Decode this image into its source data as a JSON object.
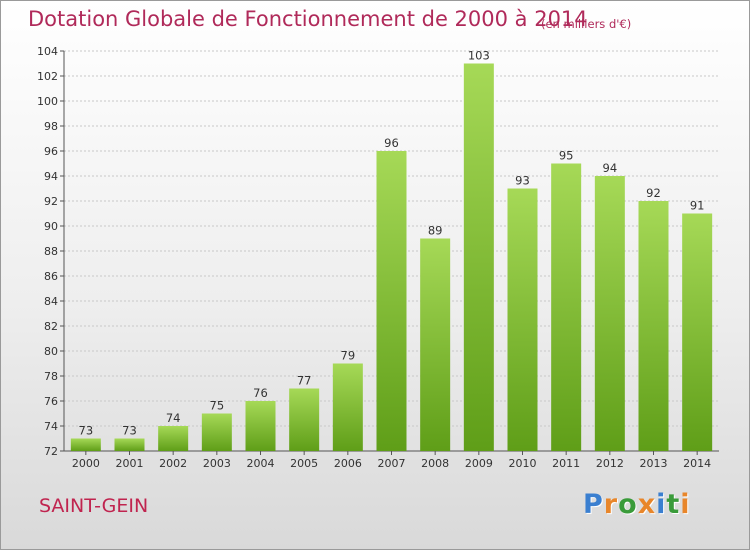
{
  "title": "Dotation Globale de Fonctionnement de 2000 à 2014",
  "subtitle": "(en milliers d'€)",
  "commune": "SAINT-GEIN",
  "logo": {
    "letters": [
      "P",
      "r",
      "o",
      "x",
      "i",
      "t",
      "i"
    ],
    "colors": [
      "#3a7fd0",
      "#e8862a",
      "#3a9b3a",
      "#e8862a",
      "#3a7fd0",
      "#3a9b3a",
      "#e8862a"
    ]
  },
  "colors": {
    "bar_light": "#a6d957",
    "bar_dark": "#5f9e18",
    "title": "#b02a5a",
    "grid": "#c8c8c8"
  },
  "chart_data": {
    "type": "bar",
    "categories": [
      "2000",
      "2001",
      "2002",
      "2003",
      "2004",
      "2005",
      "2006",
      "2007",
      "2008",
      "2009",
      "2010",
      "2011",
      "2012",
      "2013",
      "2014"
    ],
    "values": [
      73,
      73,
      74,
      75,
      76,
      77,
      79,
      96,
      89,
      103,
      93,
      95,
      94,
      92,
      91
    ],
    "ylim": [
      72,
      104
    ],
    "yticks": [
      72,
      74,
      76,
      78,
      80,
      82,
      84,
      86,
      88,
      90,
      92,
      94,
      96,
      98,
      100,
      102,
      104
    ],
    "grid": true,
    "xlabel": "",
    "ylabel": ""
  }
}
